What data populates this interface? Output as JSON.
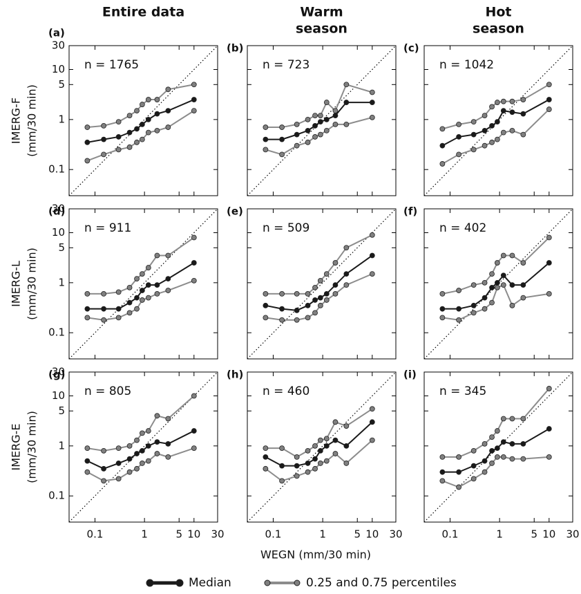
{
  "figure": {
    "xlabel": "WEGN (mm/30 min)",
    "median_color": "#1a1a1a",
    "quantile_color": "#8c8c8c",
    "legend": [
      "Median",
      "0.25 and 0.75 percentiles"
    ]
  },
  "chart_data": [
    {
      "type": "line",
      "panel": "(a)",
      "title": [
        "Entire data"
      ],
      "ylabel": [
        "IMERG-F",
        "(mm/30 min)"
      ],
      "n": "n = 1765",
      "xlim": [
        0.03,
        30
      ],
      "ylim": [
        0.03,
        30
      ],
      "xticks": [
        0.1,
        1,
        5,
        10,
        30
      ],
      "yticks": [
        0.1,
        1,
        5,
        10,
        30
      ],
      "x": [
        0.07,
        0.15,
        0.3,
        0.5,
        0.7,
        0.9,
        1.2,
        1.8,
        3,
        10
      ],
      "median": [
        0.35,
        0.4,
        0.45,
        0.55,
        0.65,
        0.8,
        1.0,
        1.3,
        1.5,
        2.5
      ],
      "q25": [
        0.15,
        0.2,
        0.25,
        0.28,
        0.35,
        0.4,
        0.55,
        0.6,
        0.7,
        1.5
      ],
      "q75": [
        0.7,
        0.75,
        0.9,
        1.2,
        1.5,
        2,
        2.5,
        2.5,
        4,
        5
      ]
    },
    {
      "type": "line",
      "panel": "(b)",
      "title": [
        "Warm",
        "season"
      ],
      "n": "n = 723",
      "xlim": [
        0.03,
        30
      ],
      "ylim": [
        0.03,
        30
      ],
      "xticks": [
        0.1,
        1,
        5,
        10,
        30
      ],
      "yticks": [
        0.1,
        1,
        5,
        10,
        30
      ],
      "x": [
        0.07,
        0.15,
        0.3,
        0.5,
        0.7,
        0.9,
        1.2,
        1.8,
        3,
        10
      ],
      "median": [
        0.4,
        0.4,
        0.5,
        0.6,
        0.75,
        0.9,
        1.0,
        1.2,
        2.2,
        2.2
      ],
      "q25": [
        0.25,
        0.2,
        0.3,
        0.35,
        0.45,
        0.5,
        0.6,
        0.8,
        0.8,
        1.1
      ],
      "q75": [
        0.7,
        0.7,
        0.8,
        1.0,
        1.2,
        1.2,
        2.2,
        1.5,
        5,
        3.5
      ]
    },
    {
      "type": "line",
      "panel": "(c)",
      "title": [
        "Hot",
        "season"
      ],
      "n": "n = 1042",
      "xlim": [
        0.03,
        30
      ],
      "ylim": [
        0.03,
        30
      ],
      "xticks": [
        0.1,
        1,
        5,
        10,
        30
      ],
      "yticks": [
        0.1,
        1,
        5,
        10,
        30
      ],
      "x": [
        0.07,
        0.15,
        0.3,
        0.5,
        0.7,
        0.9,
        1.2,
        1.8,
        3,
        10
      ],
      "median": [
        0.3,
        0.45,
        0.5,
        0.6,
        0.75,
        0.9,
        1.5,
        1.4,
        1.3,
        2.5
      ],
      "q25": [
        0.13,
        0.2,
        0.25,
        0.3,
        0.35,
        0.4,
        0.55,
        0.6,
        0.5,
        1.6
      ],
      "q75": [
        0.65,
        0.8,
        0.9,
        1.2,
        1.8,
        2.2,
        2.3,
        2.3,
        2.5,
        5
      ]
    },
    {
      "type": "line",
      "panel": "(d)",
      "ylabel": [
        "IMERG-L",
        "(mm/30 min)"
      ],
      "n": "n = 911",
      "xlim": [
        0.03,
        30
      ],
      "ylim": [
        0.03,
        30
      ],
      "xticks": [
        0.1,
        1,
        5,
        10,
        30
      ],
      "yticks": [
        0.1,
        1,
        5,
        10,
        30
      ],
      "x": [
        0.07,
        0.15,
        0.3,
        0.5,
        0.7,
        0.9,
        1.2,
        1.8,
        3,
        10
      ],
      "median": [
        0.3,
        0.3,
        0.3,
        0.4,
        0.5,
        0.7,
        0.9,
        0.9,
        1.2,
        2.5
      ],
      "q25": [
        0.2,
        0.18,
        0.2,
        0.25,
        0.3,
        0.45,
        0.5,
        0.6,
        0.7,
        1.1
      ],
      "q75": [
        0.6,
        0.6,
        0.65,
        0.8,
        1.2,
        1.5,
        2,
        3.5,
        3.5,
        8
      ]
    },
    {
      "type": "line",
      "panel": "(e)",
      "n": "n = 509",
      "xlim": [
        0.03,
        30
      ],
      "ylim": [
        0.03,
        30
      ],
      "xticks": [
        0.1,
        1,
        5,
        10,
        30
      ],
      "yticks": [
        0.1,
        1,
        5,
        10,
        30
      ],
      "x": [
        0.07,
        0.15,
        0.3,
        0.5,
        0.7,
        0.9,
        1.2,
        1.8,
        3,
        10
      ],
      "median": [
        0.35,
        0.3,
        0.28,
        0.35,
        0.45,
        0.5,
        0.6,
        0.9,
        1.5,
        3.5
      ],
      "q25": [
        0.2,
        0.18,
        0.18,
        0.2,
        0.25,
        0.35,
        0.45,
        0.6,
        0.9,
        1.5
      ],
      "q75": [
        0.6,
        0.6,
        0.6,
        0.6,
        0.8,
        1.1,
        1.5,
        2.5,
        5,
        9
      ]
    },
    {
      "type": "line",
      "panel": "(f)",
      "n": "n = 402",
      "xlim": [
        0.03,
        30
      ],
      "ylim": [
        0.03,
        30
      ],
      "xticks": [
        0.1,
        1,
        5,
        10,
        30
      ],
      "yticks": [
        0.1,
        1,
        5,
        10,
        30
      ],
      "x": [
        0.07,
        0.15,
        0.3,
        0.5,
        0.7,
        0.9,
        1.2,
        1.8,
        3,
        10
      ],
      "median": [
        0.3,
        0.3,
        0.35,
        0.5,
        0.8,
        1.0,
        1.4,
        0.9,
        0.9,
        2.5
      ],
      "q25": [
        0.2,
        0.18,
        0.25,
        0.3,
        0.4,
        0.8,
        0.9,
        0.35,
        0.5,
        0.6
      ],
      "q75": [
        0.6,
        0.7,
        0.9,
        1.0,
        1.5,
        2.5,
        3.5,
        3.5,
        2.5,
        8
      ]
    },
    {
      "type": "line",
      "panel": "(g)",
      "ylabel": [
        "IMERG-E",
        "(mm/30 min)"
      ],
      "n": "n = 805",
      "xlim": [
        0.03,
        30
      ],
      "ylim": [
        0.03,
        30
      ],
      "xticks": [
        0.1,
        1,
        5,
        10,
        30
      ],
      "yticks": [
        0.1,
        1,
        5,
        10,
        30
      ],
      "x": [
        0.07,
        0.15,
        0.3,
        0.5,
        0.7,
        0.9,
        1.2,
        1.8,
        3,
        10
      ],
      "median": [
        0.5,
        0.35,
        0.45,
        0.55,
        0.7,
        0.8,
        1.0,
        1.2,
        1.1,
        2.0
      ],
      "q25": [
        0.3,
        0.2,
        0.22,
        0.3,
        0.35,
        0.45,
        0.5,
        0.7,
        0.6,
        0.9
      ],
      "q75": [
        0.9,
        0.8,
        0.9,
        1.0,
        1.3,
        1.8,
        2,
        4,
        3.5,
        10
      ]
    },
    {
      "type": "line",
      "panel": "(h)",
      "n": "n = 460",
      "xlim": [
        0.03,
        30
      ],
      "ylim": [
        0.03,
        30
      ],
      "xticks": [
        0.1,
        1,
        5,
        10,
        30
      ],
      "yticks": [
        0.1,
        1,
        5,
        10,
        30
      ],
      "x": [
        0.07,
        0.15,
        0.3,
        0.5,
        0.7,
        0.9,
        1.2,
        1.8,
        3,
        10
      ],
      "median": [
        0.6,
        0.4,
        0.4,
        0.45,
        0.55,
        0.8,
        1.0,
        1.3,
        1.0,
        3.0
      ],
      "q25": [
        0.35,
        0.2,
        0.25,
        0.3,
        0.35,
        0.45,
        0.5,
        0.7,
        0.45,
        1.3
      ],
      "q75": [
        0.9,
        0.9,
        0.6,
        0.8,
        1.0,
        1.3,
        1.4,
        3,
        2.5,
        5.5
      ]
    },
    {
      "type": "line",
      "panel": "(i)",
      "n": "n = 345",
      "xlim": [
        0.03,
        30
      ],
      "ylim": [
        0.03,
        30
      ],
      "xticks": [
        0.1,
        1,
        5,
        10,
        30
      ],
      "yticks": [
        0.1,
        1,
        5,
        10,
        30
      ],
      "x": [
        0.07,
        0.15,
        0.3,
        0.5,
        0.7,
        0.9,
        1.2,
        1.8,
        3,
        10
      ],
      "median": [
        0.3,
        0.3,
        0.4,
        0.5,
        0.8,
        0.9,
        1.2,
        1.1,
        1.1,
        2.2
      ],
      "q25": [
        0.2,
        0.15,
        0.22,
        0.3,
        0.45,
        0.6,
        0.6,
        0.55,
        0.55,
        0.6
      ],
      "q75": [
        0.6,
        0.6,
        0.8,
        1.1,
        1.5,
        2,
        3.5,
        3.5,
        3.5,
        14
      ]
    }
  ]
}
